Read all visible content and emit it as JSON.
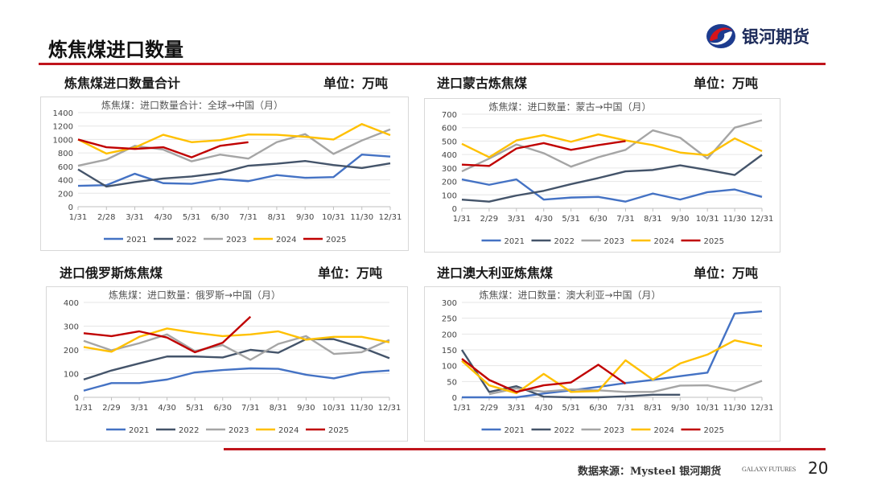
{
  "header": {
    "title": "炼焦煤进口数量",
    "logo_text": "银河期货"
  },
  "panels": [
    {
      "heading": "炼焦煤进口数量合计",
      "unit": "单位：万吨"
    },
    {
      "heading": "进口蒙古炼焦煤",
      "unit": "单位：万吨"
    },
    {
      "heading": "进口俄罗斯炼焦煤",
      "unit": "单位：万吨"
    },
    {
      "heading": "进口澳大利亚炼焦煤",
      "unit": "单位：万吨"
    }
  ],
  "footer": {
    "source": "数据来源：Mysteel 银河期货",
    "brand": "GALAXY FUTURES",
    "page": "20"
  },
  "colors": {
    "2021": "#4472c4",
    "2022": "#44546a",
    "2023": "#a5a5a5",
    "2024": "#ffc000",
    "2025": "#c00000"
  },
  "chart_data": [
    {
      "type": "line",
      "title": "炼焦煤：进口数量合计：全球→中国（月）",
      "ylim": [
        0,
        1400
      ],
      "yticks": [
        0,
        200,
        400,
        600,
        800,
        1000,
        1200,
        1400
      ],
      "categories": [
        "1/31",
        "2/28",
        "3/31",
        "4/30",
        "5/31",
        "6/30",
        "7/31",
        "8/31",
        "9/30",
        "10/31",
        "11/30",
        "12/31"
      ],
      "legend": "bottom",
      "grid": true,
      "series": [
        {
          "name": "2021",
          "values": [
            310,
            320,
            490,
            350,
            340,
            410,
            380,
            470,
            430,
            440,
            775,
            745
          ]
        },
        {
          "name": "2022",
          "values": [
            555,
            300,
            365,
            420,
            450,
            500,
            610,
            640,
            680,
            620,
            575,
            645
          ]
        },
        {
          "name": "2023",
          "values": [
            610,
            700,
            905,
            850,
            675,
            775,
            715,
            960,
            1080,
            785,
            985,
            1150
          ]
        },
        {
          "name": "2024",
          "values": [
            1000,
            790,
            880,
            1070,
            960,
            990,
            1075,
            1070,
            1040,
            1000,
            1230,
            1065
          ]
        },
        {
          "name": "2025",
          "values": [
            1000,
            885,
            860,
            885,
            735,
            905,
            960,
            null,
            null,
            null,
            null,
            null
          ]
        }
      ]
    },
    {
      "type": "line",
      "title": "炼焦煤：进口数量：蒙古→中国（月）",
      "ylim": [
        0,
        700
      ],
      "yticks": [
        0,
        100,
        200,
        300,
        400,
        500,
        600,
        700
      ],
      "categories": [
        "1/31",
        "2/29",
        "3/31",
        "4/30",
        "5/31",
        "6/30",
        "7/31",
        "8/31",
        "9/30",
        "10/31",
        "11/30",
        "12/31"
      ],
      "legend": "bottom",
      "grid": true,
      "series": [
        {
          "name": "2021",
          "values": [
            215,
            175,
            215,
            65,
            80,
            85,
            50,
            110,
            65,
            120,
            140,
            85
          ]
        },
        {
          "name": "2022",
          "values": [
            65,
            50,
            95,
            130,
            180,
            225,
            275,
            285,
            320,
            285,
            248,
            398
          ]
        },
        {
          "name": "2023",
          "values": [
            275,
            370,
            475,
            410,
            310,
            380,
            435,
            580,
            525,
            370,
            600,
            655
          ]
        },
        {
          "name": "2024",
          "values": [
            480,
            380,
            505,
            545,
            495,
            550,
            505,
            470,
            415,
            395,
            520,
            425
          ]
        },
        {
          "name": "2025",
          "values": [
            325,
            315,
            445,
            485,
            435,
            470,
            500,
            null,
            null,
            null,
            null,
            null
          ]
        }
      ]
    },
    {
      "type": "line",
      "title": "炼焦煤：进口数量：俄罗斯→中国（月）",
      "ylim": [
        0,
        400
      ],
      "yticks": [
        0,
        100,
        200,
        300,
        400
      ],
      "categories": [
        "1/31",
        "2/29",
        "3/31",
        "4/30",
        "5/31",
        "6/30",
        "7/31",
        "8/31",
        "9/30",
        "10/31",
        "11/30",
        "12/31"
      ],
      "legend": "bottom",
      "grid": true,
      "series": [
        {
          "name": "2021",
          "values": [
            28,
            60,
            60,
            75,
            105,
            115,
            122,
            120,
            95,
            80,
            105,
            113
          ]
        },
        {
          "name": "2022",
          "values": [
            75,
            113,
            143,
            172,
            172,
            168,
            200,
            188,
            245,
            245,
            210,
            165
          ]
        },
        {
          "name": "2023",
          "values": [
            238,
            198,
            228,
            265,
            195,
            220,
            158,
            225,
            258,
            183,
            190,
            242
          ]
        },
        {
          "name": "2024",
          "values": [
            212,
            192,
            255,
            290,
            272,
            258,
            265,
            278,
            243,
            255,
            255,
            232
          ]
        },
        {
          "name": "2025",
          "values": [
            270,
            258,
            278,
            252,
            190,
            230,
            340,
            null,
            null,
            null,
            null,
            null
          ]
        }
      ]
    },
    {
      "type": "line",
      "title": "炼焦煤：进口数量：澳大利亚→中国（月）",
      "ylim": [
        0,
        300
      ],
      "yticks": [
        0,
        50,
        100,
        150,
        200,
        250,
        300
      ],
      "categories": [
        "1/31",
        "2/29",
        "3/31",
        "4/30",
        "5/31",
        "6/30",
        "7/31",
        "8/31",
        "9/30",
        "10/31",
        "11/30",
        "12/31"
      ],
      "legend": "bottom",
      "grid": true,
      "series": [
        {
          "name": "2021",
          "values": [
            0,
            0,
            0,
            12,
            22,
            33,
            45,
            55,
            67,
            78,
            265,
            272
          ]
        },
        {
          "name": "2022",
          "values": [
            150,
            17,
            35,
            2,
            0,
            0,
            3,
            8,
            8,
            null,
            null,
            null
          ]
        },
        {
          "name": "2023",
          "values": [
            null,
            10,
            28,
            18,
            25,
            22,
            17,
            17,
            37,
            38,
            20,
            52
          ]
        },
        {
          "name": "2024",
          "values": [
            115,
            38,
            13,
            74,
            17,
            20,
            117,
            56,
            107,
            135,
            180,
            162
          ]
        },
        {
          "name": "2025",
          "values": [
            122,
            55,
            17,
            38,
            47,
            103,
            43,
            null,
            null,
            null,
            null,
            null
          ]
        }
      ]
    }
  ]
}
